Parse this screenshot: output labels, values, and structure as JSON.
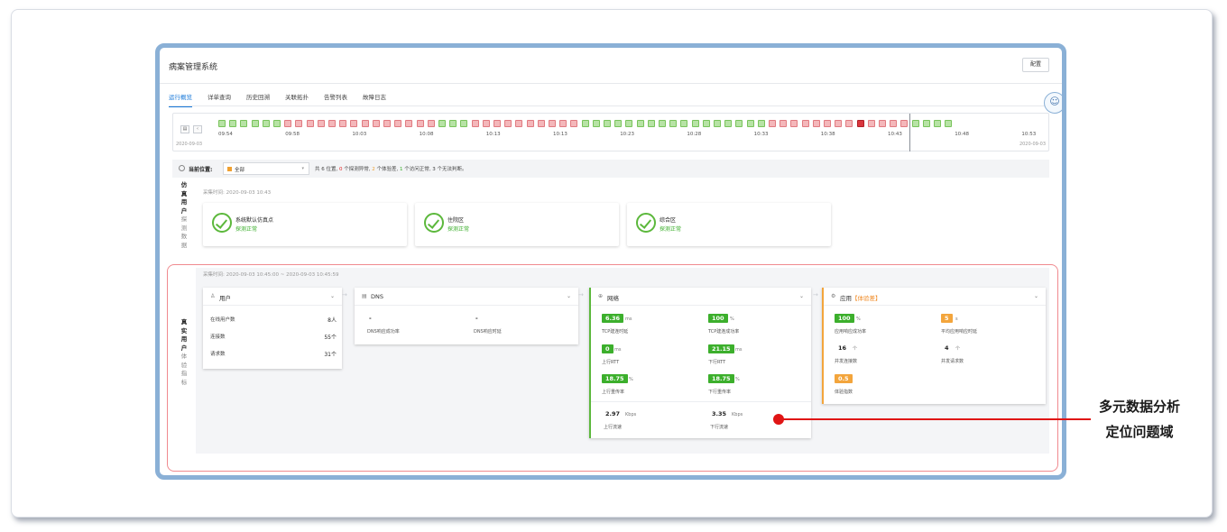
{
  "app": {
    "title": "病案管理系统",
    "config_label": "配置"
  },
  "tabs": [
    {
      "label": "运行概览",
      "active": true
    },
    {
      "label": "详单查询",
      "active": false
    },
    {
      "label": "历史回溯",
      "active": false
    },
    {
      "label": "关联拓扑",
      "active": false
    },
    {
      "label": "告警列表",
      "active": false
    },
    {
      "label": "故障日志",
      "active": false
    }
  ],
  "timeline": {
    "start_date": "2020-09-03",
    "end_date": "2020-09-03",
    "ticks": [
      "09:54",
      "09:58",
      "10:03",
      "10:08",
      "10:13",
      "10:13",
      "10:23",
      "10:28",
      "10:33",
      "10:38",
      "10:43",
      "10:48",
      "10:53"
    ],
    "statuses": [
      "ok",
      "ok",
      "ok",
      "ok",
      "ok",
      "ok",
      "bad",
      "bad",
      "bad",
      "bad",
      "bad",
      "bad",
      "bad",
      "bad",
      "bad",
      "bad",
      "bad",
      "bad",
      "bad",
      "bad",
      "ok",
      "ok",
      "ok",
      "bad",
      "bad",
      "bad",
      "bad",
      "bad",
      "bad",
      "bad",
      "bad",
      "bad",
      "bad",
      "ok",
      "ok",
      "ok",
      "ok",
      "ok",
      "ok",
      "ok",
      "ok",
      "ok",
      "ok",
      "ok",
      "ok",
      "ok",
      "ok",
      "ok",
      "ok",
      "ok",
      "bad",
      "bad",
      "bad",
      "bad",
      "bad",
      "bad",
      "bad",
      "bad",
      "cur",
      "bad",
      "bad",
      "bad",
      "bad",
      "ok",
      "ok",
      "ok",
      "ok"
    ],
    "colors": {
      "ok": "#b7e3a5",
      "bad": "#f4b7ba",
      "current": "#d9363e"
    }
  },
  "location": {
    "label": "当前位置:",
    "selected": "全部",
    "summary_prefix": "共 6 位置,",
    "abnormal_count": "0",
    "abnormal_text": "个探测异常,",
    "poor_count": "2",
    "poor_text": "个体验差,",
    "normal_count": "1",
    "normal_text": "个访问正常,",
    "unknown_text": "3 个无法判断。"
  },
  "sim_section": {
    "label_bold": [
      "仿",
      "真",
      "用",
      "户"
    ],
    "label_gray": [
      "探",
      "测",
      "数",
      "据"
    ],
    "collect_time": "采集时间: 2020-09-03 10:43",
    "cards": [
      {
        "name": "系统默认仿真点",
        "status": "探测正常"
      },
      {
        "name": "住院区",
        "status": "探测正常"
      },
      {
        "name": "综合区",
        "status": "探测正常"
      }
    ]
  },
  "real_section": {
    "label_bold": [
      "真",
      "实",
      "用",
      "户"
    ],
    "label_gray": [
      "体",
      "验",
      "指",
      "标"
    ],
    "collect_time": "采集时间: 2020-09-03 10:45:00 ~ 2020-09-03 10:45:59",
    "user": {
      "title": "用户",
      "rows": [
        {
          "label": "在线用户数",
          "value": "8人"
        },
        {
          "label": "连接数",
          "value": "55个"
        },
        {
          "label": "请求数",
          "value": "31个"
        }
      ]
    },
    "dns": {
      "title": "DNS",
      "items": [
        {
          "value": "-",
          "label": "DNS响应成功率"
        },
        {
          "value": "-",
          "label": "DNS响应时延"
        }
      ]
    },
    "network": {
      "title": "网络",
      "accent": "#5cb83c",
      "metrics": [
        {
          "value": "6.36",
          "unit": "ms",
          "label": "TCP建连时延"
        },
        {
          "value": "100",
          "unit": "%",
          "label": "TCP建连成功率"
        },
        {
          "value": "0",
          "unit": "ms",
          "label": "上行RTT"
        },
        {
          "value": "21.15",
          "unit": "ms",
          "label": "下行RTT"
        },
        {
          "value": "18.75",
          "unit": "%",
          "label": "上行重传率"
        },
        {
          "value": "18.75",
          "unit": "%",
          "label": "下行重传率"
        }
      ],
      "traffic": [
        {
          "value": "2.97",
          "unit": "Kbps",
          "label": "上行流速"
        },
        {
          "value": "3.35",
          "unit": "Kbps",
          "label": "下行流速"
        }
      ]
    },
    "app": {
      "title": "应用",
      "tag": "【体验差】",
      "accent": "#f3a53c",
      "metrics": [
        {
          "value": "100",
          "unit": "%",
          "label": "应用响应成功率",
          "style": "green"
        },
        {
          "value": "5",
          "unit": "s",
          "label": "平均应用响应时延",
          "style": "orange"
        },
        {
          "value": "16",
          "unit": "个",
          "label": "并发连接数",
          "style": "plain"
        },
        {
          "value": "4",
          "unit": "个",
          "label": "并发请求数",
          "style": "plain"
        },
        {
          "value": "0.5",
          "unit": "",
          "label": "体验指数",
          "style": "orange"
        }
      ]
    }
  },
  "annotation": {
    "line1": "多元数据分析",
    "line2": "定位问题域"
  }
}
